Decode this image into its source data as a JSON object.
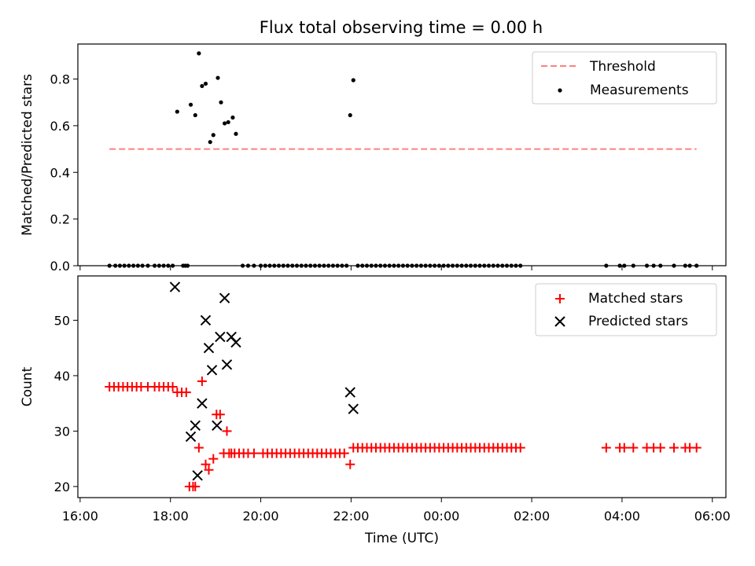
{
  "chart_data": [
    {
      "type": "scatter",
      "title": "Flux total observing time = 0.00 h",
      "ylabel": "Matched/Predicted stars",
      "xlabel": "",
      "ylim": [
        0,
        0.95
      ],
      "yticks": [
        0.0,
        0.2,
        0.4,
        0.6,
        0.8
      ],
      "ytick_labels": [
        "0.0",
        "0.2",
        "0.4",
        "0.6",
        "0.8"
      ],
      "legend_position": "top-right",
      "threshold": {
        "name": "Threshold",
        "value": 0.5,
        "x_start": 16.65,
        "x_end": 29.65,
        "color": "#ff8080"
      },
      "series": [
        {
          "name": "Measurements",
          "color": "#000000",
          "marker": "dot",
          "x": [
            16.65,
            16.78,
            16.88,
            16.98,
            17.08,
            17.18,
            17.28,
            17.38,
            17.5,
            17.65,
            17.75,
            17.85,
            17.95,
            18.05,
            18.15,
            18.28,
            18.33,
            18.38,
            18.45,
            18.55,
            18.63,
            18.7,
            18.78,
            18.88,
            18.95,
            19.05,
            19.12,
            19.2,
            19.28,
            19.38,
            19.45,
            19.6,
            19.72,
            19.85,
            20.0,
            20.1,
            20.2,
            20.3,
            20.4,
            20.5,
            20.6,
            20.7,
            20.8,
            20.9,
            21.0,
            21.1,
            21.2,
            21.3,
            21.4,
            21.5,
            21.6,
            21.7,
            21.8,
            21.9,
            21.98,
            22.05,
            22.15,
            22.25,
            22.35,
            22.45,
            22.55,
            22.65,
            22.75,
            22.85,
            22.95,
            23.05,
            23.15,
            23.25,
            23.35,
            23.45,
            23.55,
            23.65,
            23.75,
            23.85,
            23.95,
            24.05,
            24.15,
            24.25,
            24.35,
            24.45,
            24.55,
            24.65,
            24.75,
            24.85,
            24.95,
            25.05,
            25.15,
            25.25,
            25.35,
            25.45,
            25.55,
            25.65,
            25.75,
            27.65,
            27.95,
            28.05,
            28.25,
            28.55,
            28.7,
            28.85,
            29.15,
            29.4,
            29.5,
            29.65
          ],
          "y": [
            0,
            0,
            0,
            0,
            0,
            0,
            0,
            0,
            0,
            0,
            0,
            0,
            0,
            0,
            0.66,
            0,
            0,
            0,
            0.69,
            0.645,
            0.91,
            0.77,
            0.78,
            0.53,
            0.56,
            0.805,
            0.7,
            0.61,
            0.615,
            0.635,
            0.565,
            0,
            0,
            0,
            0,
            0,
            0,
            0,
            0,
            0,
            0,
            0,
            0,
            0,
            0,
            0,
            0,
            0,
            0,
            0,
            0,
            0,
            0,
            0,
            0.645,
            0.795,
            0,
            0,
            0,
            0,
            0,
            0,
            0,
            0,
            0,
            0,
            0,
            0,
            0,
            0,
            0,
            0,
            0,
            0,
            0,
            0,
            0,
            0,
            0,
            0,
            0,
            0,
            0,
            0,
            0,
            0,
            0,
            0,
            0,
            0,
            0,
            0,
            0,
            0,
            0,
            0,
            0,
            0,
            0,
            0,
            0,
            0,
            0,
            0
          ]
        }
      ]
    },
    {
      "type": "scatter",
      "title": "",
      "ylabel": "Count",
      "xlabel": "Time (UTC)",
      "ylim": [
        18,
        58
      ],
      "yticks": [
        20,
        30,
        40,
        50
      ],
      "ytick_labels": [
        "20",
        "30",
        "40",
        "50"
      ],
      "xlim": [
        15.95,
        30.3
      ],
      "xticks": [
        16,
        18,
        20,
        22,
        24,
        26,
        28,
        30
      ],
      "xtick_labels": [
        "16:00",
        "18:00",
        "20:00",
        "22:00",
        "00:00",
        "02:00",
        "04:00",
        "06:00"
      ],
      "legend_position": "top-right",
      "series": [
        {
          "name": "Matched stars",
          "color": "#ff0000",
          "marker": "plus",
          "x": [
            16.65,
            16.75,
            16.85,
            16.95,
            17.05,
            17.15,
            17.25,
            17.35,
            17.5,
            17.65,
            17.75,
            17.85,
            17.95,
            18.05,
            18.15,
            18.25,
            18.35,
            18.42,
            18.5,
            18.55,
            18.63,
            18.7,
            18.78,
            18.85,
            18.95,
            19.02,
            19.1,
            19.18,
            19.25,
            19.35,
            19.3,
            19.42,
            19.52,
            19.62,
            19.72,
            19.85,
            20.05,
            20.15,
            20.25,
            20.35,
            20.45,
            20.55,
            20.65,
            20.75,
            20.85,
            20.95,
            21.05,
            21.15,
            21.25,
            21.35,
            21.45,
            21.55,
            21.65,
            21.75,
            21.85,
            21.98,
            22.05,
            22.15,
            22.25,
            22.35,
            22.45,
            22.55,
            22.65,
            22.75,
            22.85,
            22.95,
            23.05,
            23.15,
            23.25,
            23.35,
            23.45,
            23.55,
            23.65,
            23.75,
            23.85,
            23.95,
            24.05,
            24.15,
            24.25,
            24.35,
            24.45,
            24.55,
            24.65,
            24.75,
            24.85,
            24.95,
            25.05,
            25.15,
            25.25,
            25.35,
            25.45,
            25.55,
            25.65,
            25.75,
            27.65,
            27.95,
            28.05,
            28.25,
            28.55,
            28.7,
            28.85,
            29.15,
            29.4,
            29.5,
            29.65
          ],
          "y": [
            38,
            38,
            38,
            38,
            38,
            38,
            38,
            38,
            38,
            38,
            38,
            38,
            38,
            38,
            37,
            37,
            37,
            20,
            20,
            20,
            27,
            39,
            24,
            23,
            25,
            33,
            33,
            26,
            30,
            26,
            26,
            26,
            26,
            26,
            26,
            26,
            26,
            26,
            26,
            26,
            26,
            26,
            26,
            26,
            26,
            26,
            26,
            26,
            26,
            26,
            26,
            26,
            26,
            26,
            26,
            24,
            27,
            27,
            27,
            27,
            27,
            27,
            27,
            27,
            27,
            27,
            27,
            27,
            27,
            27,
            27,
            27,
            27,
            27,
            27,
            27,
            27,
            27,
            27,
            27,
            27,
            27,
            27,
            27,
            27,
            27,
            27,
            27,
            27,
            27,
            27,
            27,
            27,
            27,
            27,
            27,
            27,
            27,
            27,
            27,
            27,
            27,
            27,
            27,
            27
          ]
        },
        {
          "name": "Predicted stars",
          "color": "#000000",
          "marker": "x",
          "x": [
            18.1,
            18.45,
            18.55,
            18.6,
            18.7,
            18.78,
            18.85,
            18.92,
            19.03,
            19.1,
            19.2,
            19.25,
            19.35,
            19.45,
            21.98,
            22.05
          ],
          "y": [
            56,
            29,
            31,
            22,
            35,
            50,
            45,
            41,
            31,
            47,
            54,
            42,
            47,
            46,
            37,
            34
          ]
        }
      ]
    }
  ]
}
